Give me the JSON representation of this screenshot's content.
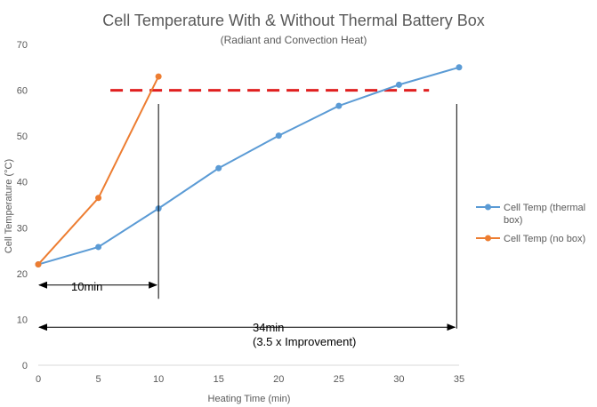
{
  "chart_data": {
    "type": "line",
    "title": "Cell Temperature With & Without Thermal Battery Box",
    "subtitle": "(Radiant and Convection Heat)",
    "xlabel": "Heating Time (min)",
    "ylabel": "Cell Temperature (°C)",
    "xlim": [
      0,
      35
    ],
    "ylim": [
      0,
      70
    ],
    "xticks": [
      "0",
      "5",
      "10",
      "15",
      "20",
      "25",
      "30",
      "35"
    ],
    "yticks": [
      "0",
      "10",
      "20",
      "30",
      "40",
      "50",
      "60",
      "70"
    ],
    "grid": false,
    "legend_position": "right",
    "series": [
      {
        "name": "Cell Temp (thermal box)",
        "legend_lines": [
          "Cell Temp (thermal",
          "box)"
        ],
        "color": "#5b9bd5",
        "x": [
          0,
          5,
          10,
          15,
          20,
          25,
          30,
          35
        ],
        "values": [
          22,
          25.8,
          34.2,
          43,
          50.1,
          56.6,
          61.2,
          65
        ]
      },
      {
        "name": "Cell Temp (no box)",
        "legend_lines": [
          "Cell Temp (no box)"
        ],
        "color": "#ed7d31",
        "x": [
          0,
          5,
          10
        ],
        "values": [
          22,
          36.5,
          63
        ]
      }
    ],
    "threshold": {
      "y": 60,
      "x_start": 6,
      "x_end": 32.5,
      "color": "#e02020",
      "style": "dashed"
    },
    "annotations": {
      "marker_10": {
        "x": 10,
        "y_top": 57,
        "y_bottom": 14.5
      },
      "marker_34": {
        "x": 34.8,
        "y_top": 57,
        "y_bottom": 8
      },
      "arrow_10": {
        "x1": 0,
        "x2": 10,
        "y": 17.5,
        "label": "10min"
      },
      "arrow_34": {
        "x1": 0,
        "x2": 34.8,
        "y": 8.3,
        "label_line1": "34min",
        "label_line2": "(3.5 x Improvement)"
      }
    }
  }
}
